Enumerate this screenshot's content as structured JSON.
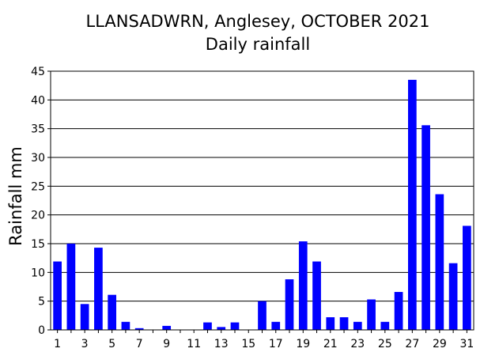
{
  "chart_data": {
    "type": "bar",
    "title": "LLANSADWRN, Anglesey, OCTOBER 2021",
    "subtitle": "Daily rainfall",
    "xlabel": "",
    "ylabel": "Rainfall mm",
    "ylim": [
      0,
      45
    ],
    "yticks": [
      "0",
      "5",
      "10",
      "15",
      "20",
      "25",
      "30",
      "35",
      "40",
      "45"
    ],
    "categories": [
      "1",
      "2",
      "3",
      "4",
      "5",
      "6",
      "7",
      "8",
      "9",
      "10",
      "11",
      "12",
      "13",
      "14",
      "15",
      "16",
      "17",
      "18",
      "19",
      "20",
      "21",
      "22",
      "23",
      "24",
      "25",
      "26",
      "27",
      "28",
      "29",
      "30",
      "31"
    ],
    "xtick_labels": [
      "1",
      "3",
      "5",
      "7",
      "9",
      "11",
      "13",
      "15",
      "17",
      "19",
      "21",
      "23",
      "25",
      "27",
      "29",
      "31"
    ],
    "values": [
      11.9,
      15.0,
      4.5,
      14.3,
      6.1,
      1.4,
      0.3,
      0,
      0.7,
      0,
      0,
      1.3,
      0.5,
      1.3,
      0,
      5.0,
      1.4,
      8.8,
      15.4,
      11.9,
      2.2,
      2.2,
      1.4,
      5.3,
      1.4,
      6.6,
      43.5,
      35.6,
      23.6,
      11.6,
      18.1
    ],
    "grid": "horizontal",
    "bar_color": "#0000ff"
  }
}
